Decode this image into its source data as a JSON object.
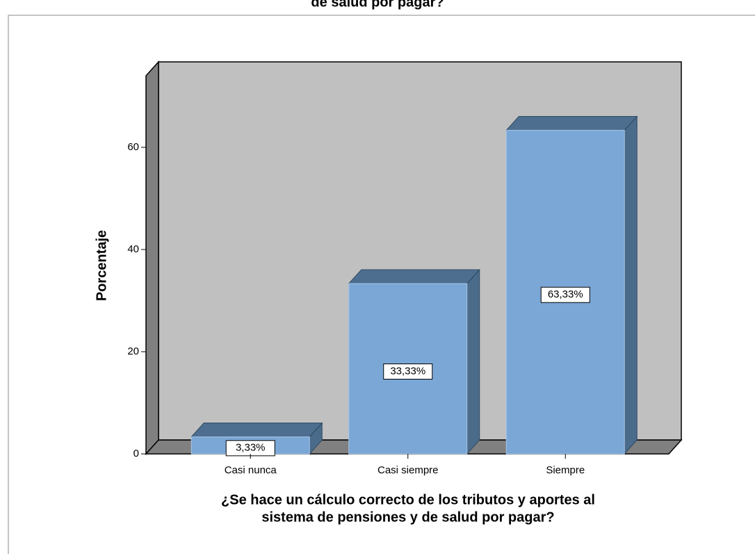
{
  "chart_data": {
    "type": "bar3d",
    "title": "de salud por pagar?",
    "xlabel": [
      "¿Se hace un cálculo correcto de los tributos y aportes al",
      "sistema de pensiones y de salud por pagar?"
    ],
    "ylabel": "Porcentaje",
    "categories": [
      "Casi nunca",
      "Casi siempre",
      "Siempre"
    ],
    "values": [
      3.33,
      33.33,
      63.33
    ],
    "value_labels": [
      "3,33%",
      "33,33%",
      "63,33%"
    ],
    "color": "#7ba7d6",
    "ylim": [
      0,
      74
    ],
    "yticks": [
      0,
      20,
      40,
      60
    ]
  }
}
